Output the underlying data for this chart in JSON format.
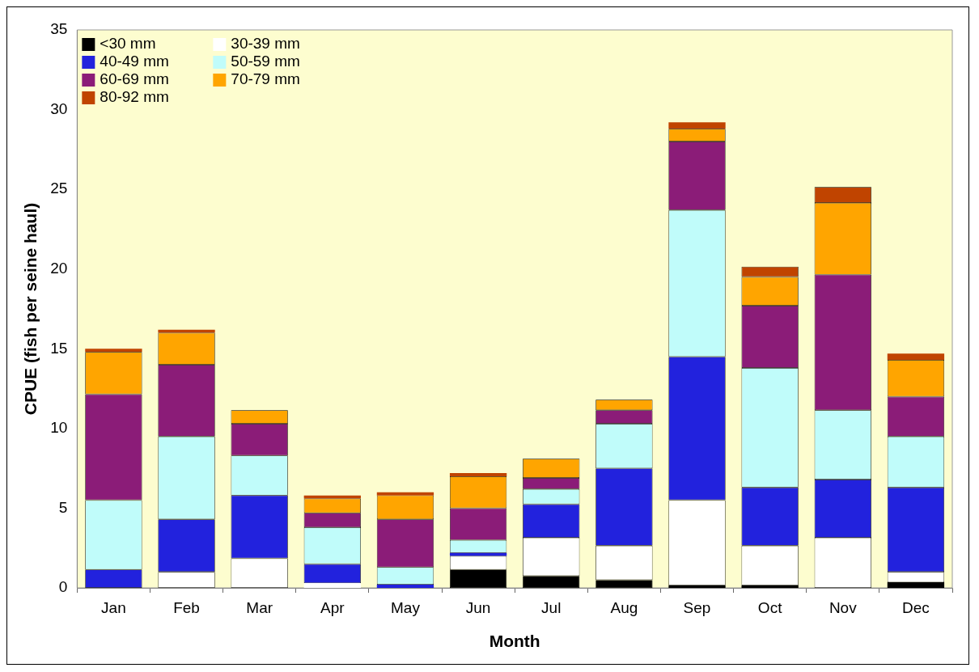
{
  "chart_data": {
    "type": "bar",
    "stacked": true,
    "xlabel": "Month",
    "ylabel": "CPUE (fish per seine haul)",
    "categories": [
      "Jan",
      "Feb",
      "Mar",
      "Apr",
      "May",
      "Jun",
      "Jul",
      "Aug",
      "Sep",
      "Oct",
      "Nov",
      "Dec"
    ],
    "ylim": [
      0,
      35
    ],
    "yticks": [
      0,
      5,
      10,
      15,
      20,
      25,
      30,
      35
    ],
    "grid": false,
    "legend": "top left",
    "series": [
      {
        "name": "<30 mm",
        "color": "#000000",
        "values": [
          0,
          0,
          0,
          0,
          0,
          1.15,
          0.75,
          0.5,
          0.15,
          0.15,
          0,
          0.35
        ]
      },
      {
        "name": "30-39 mm",
        "color": "#ffffff",
        "values": [
          0,
          1.0,
          1.85,
          0.3,
          0,
          0.85,
          2.4,
          2.15,
          5.35,
          2.5,
          3.15,
          0.65
        ]
      },
      {
        "name": "40-49 mm",
        "color": "#2222dd",
        "values": [
          1.15,
          3.3,
          3.95,
          1.2,
          0.2,
          0.2,
          2.1,
          4.85,
          9.0,
          3.65,
          3.65,
          5.3
        ]
      },
      {
        "name": "50-59 mm",
        "color": "#c0fcfa",
        "values": [
          4.35,
          5.2,
          2.5,
          2.3,
          1.1,
          0.8,
          0.95,
          2.8,
          9.2,
          7.5,
          4.35,
          3.2
        ]
      },
      {
        "name": "60-69 mm",
        "color": "#8b1c78",
        "values": [
          6.65,
          4.5,
          2.0,
          0.9,
          3.0,
          2.0,
          0.7,
          0.85,
          4.3,
          3.9,
          8.5,
          2.5
        ]
      },
      {
        "name": "70-79 mm",
        "color": "#ffa500",
        "values": [
          2.65,
          2.0,
          0.85,
          0.9,
          1.5,
          2.0,
          1.2,
          0.65,
          0.8,
          1.8,
          4.5,
          2.3
        ]
      },
      {
        "name": "80-92 mm",
        "color": "#c04400",
        "values": [
          0.2,
          0.2,
          0,
          0.2,
          0.2,
          0.2,
          0,
          0,
          0.4,
          0.65,
          1.0,
          0.4
        ]
      }
    ]
  }
}
